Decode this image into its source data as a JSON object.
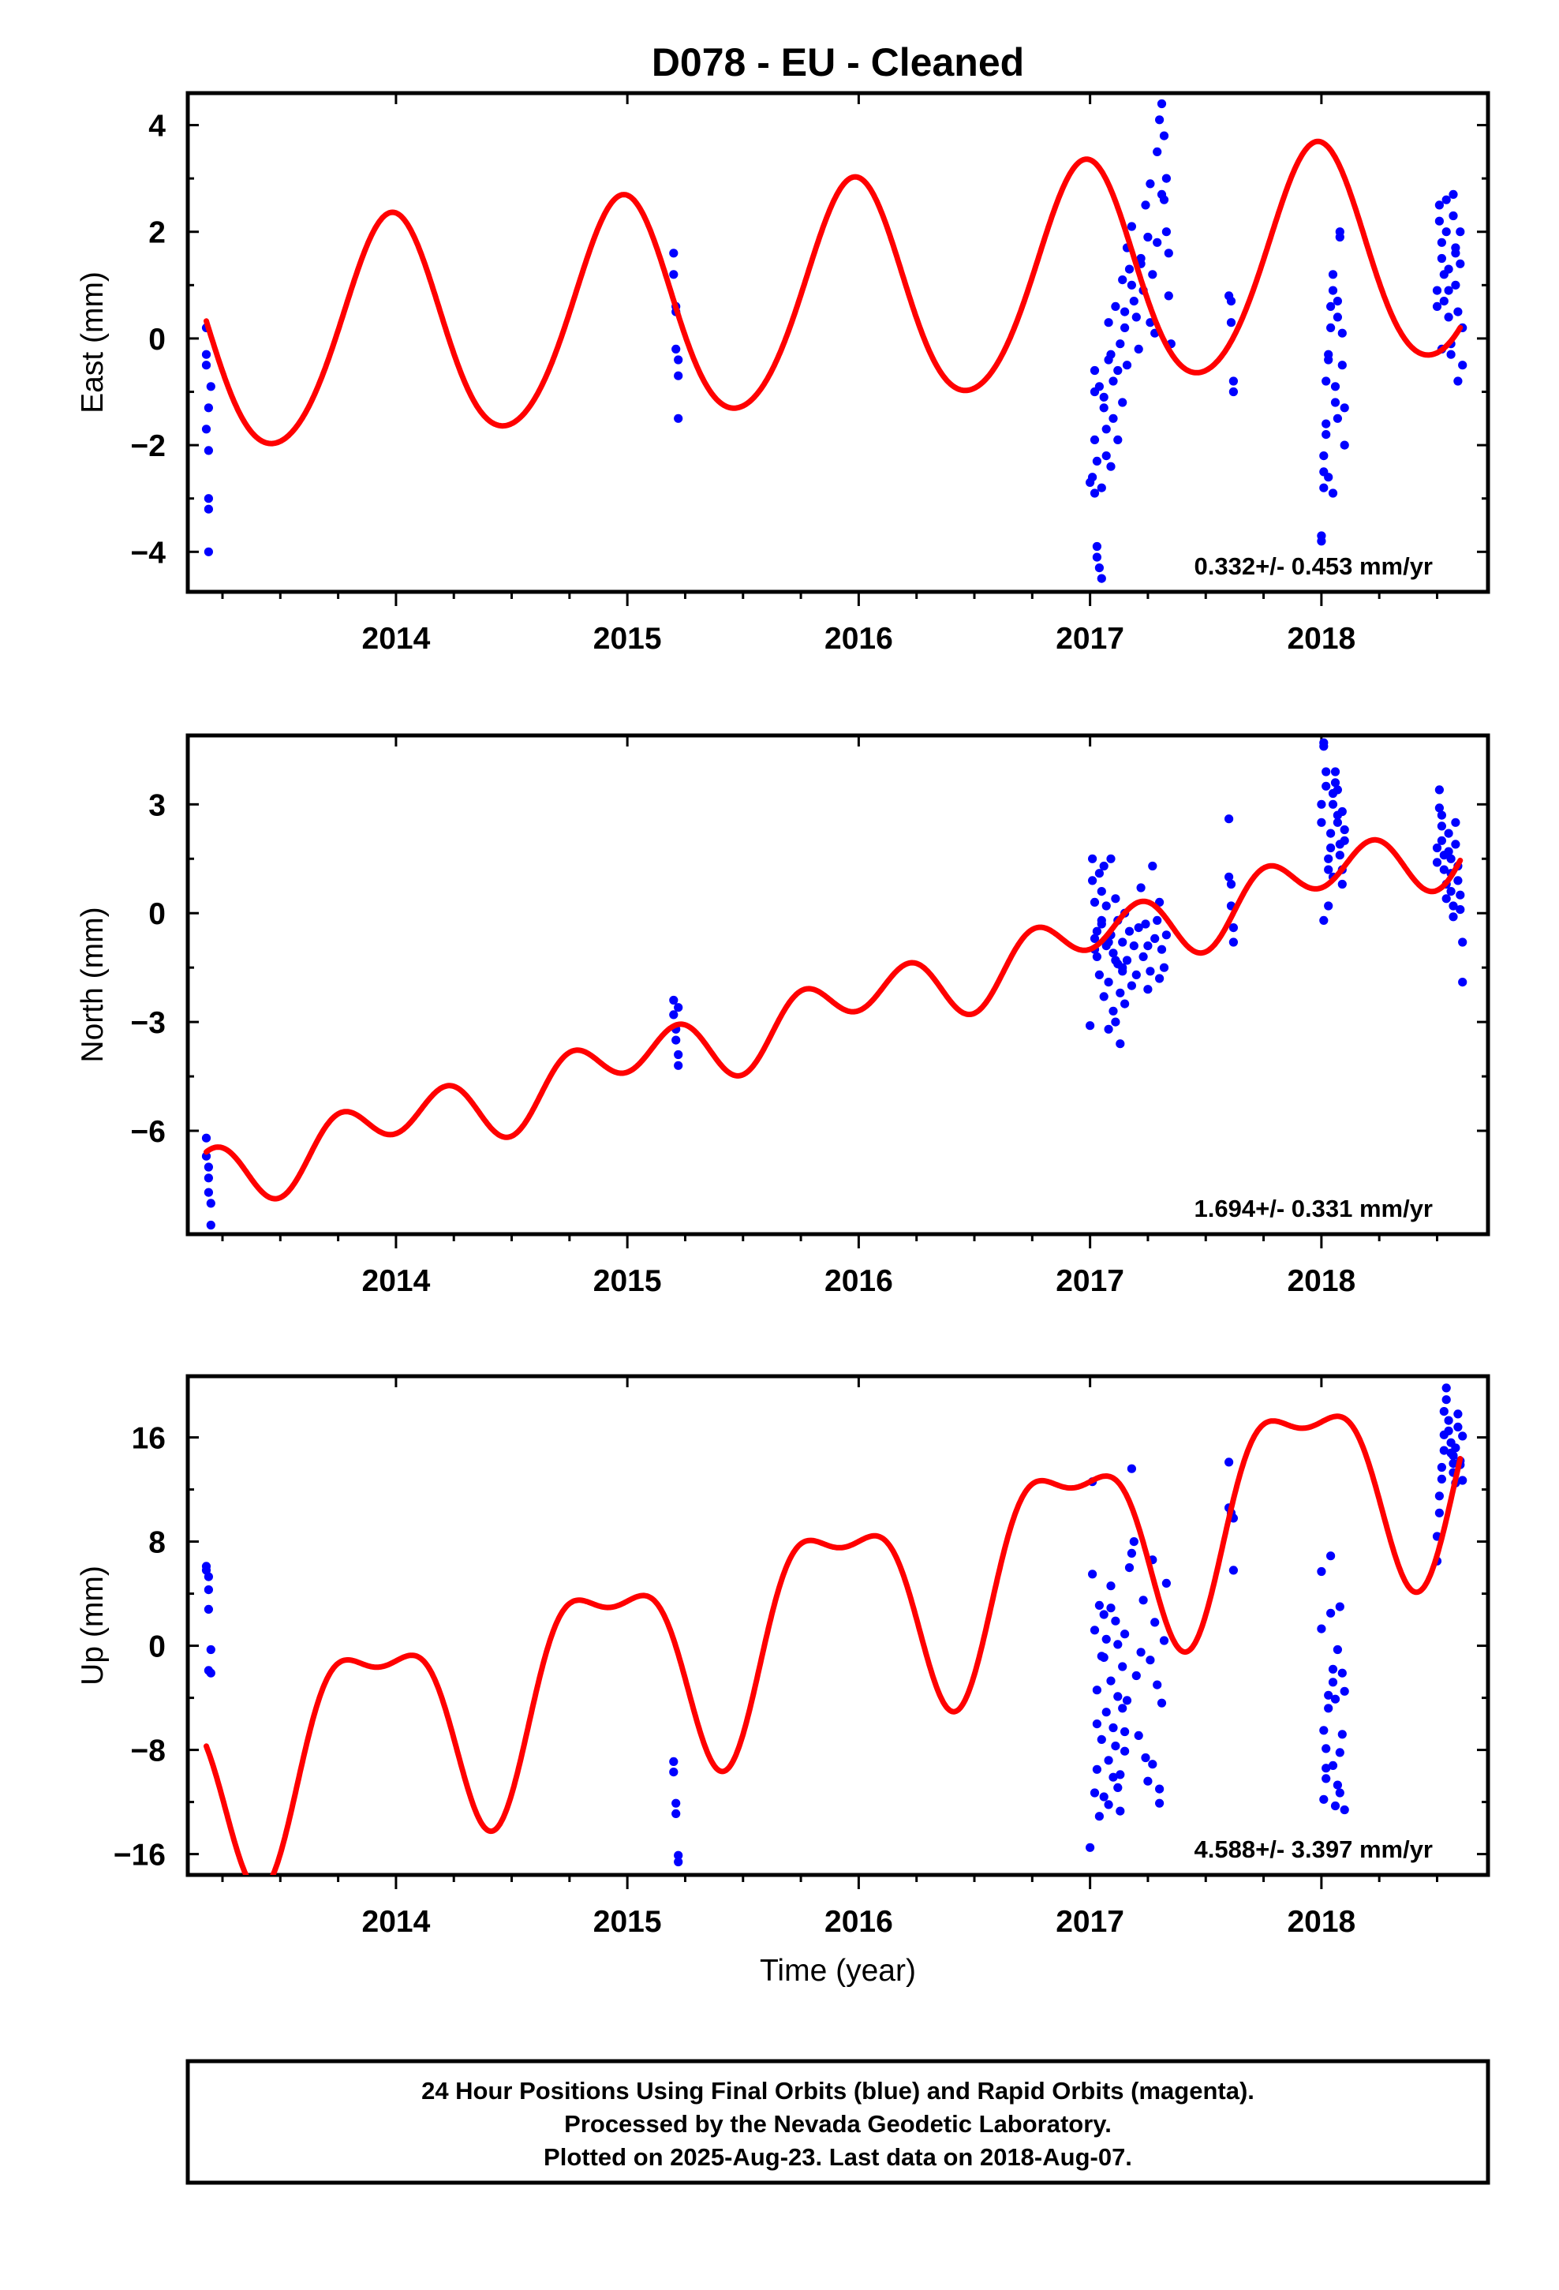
{
  "figure": {
    "title": "D078  - EU - Cleaned",
    "xlabel": "Time (year)",
    "footer": [
      "24 Hour Positions Using Final Orbits (blue) and Rapid Orbits (magenta).",
      "Processed by the Nevada Geodetic Laboratory.",
      "Plotted on 2025-Aug-23. Last data on 2018-Aug-07."
    ]
  },
  "chart_data": [
    {
      "type": "scatter",
      "ylabel": "East (mm)",
      "annotation": "0.332+/- 0.453 mm/yr",
      "xlim": [
        2013.1,
        2018.72
      ],
      "ylim": [
        -4.75,
        4.6
      ],
      "x_ticks": [
        2014,
        2015,
        2016,
        2017,
        2018
      ],
      "y_ticks": [
        4,
        2,
        0,
        -2,
        -4
      ],
      "y_tick_labels": [
        "4",
        "2",
        "0",
        "−2",
        "−4"
      ],
      "colors": {
        "data": "#0000ff",
        "model": "#ff0000"
      },
      "series": [
        {
          "marker": "dot",
          "x": [
            2013.18,
            2013.18,
            2013.19,
            2013.18,
            2013.19,
            2013.19,
            2013.19,
            2013.19,
            2013.2,
            2013.18,
            2015.2,
            2015.2,
            2015.21,
            2015.21,
            2015.21,
            2015.22,
            2015.22,
            2015.22,
            2017.0,
            2017.01,
            2017.02,
            2017.02,
            2017.03,
            2017.03,
            2017.04,
            2017.05,
            2017.05,
            2017.06,
            2017.07,
            2017.07,
            2017.08,
            2017.09,
            2017.1,
            2017.1,
            2017.11,
            2017.12,
            2017.13,
            2017.14,
            2017.14,
            2017.15,
            2017.16,
            2017.16,
            2017.17,
            2017.18,
            2017.19,
            2017.2,
            2017.21,
            2017.22,
            2017.23,
            2017.24,
            2017.25,
            2017.26,
            2017.27,
            2017.28,
            2017.29,
            2017.3,
            2017.31,
            2017.32,
            2017.32,
            2017.33,
            2017.33,
            2017.34,
            2017.34,
            2017.35,
            2017.02,
            2017.03,
            2017.04,
            2017.06,
            2017.08,
            2017.12,
            2017.15,
            2017.18,
            2017.22,
            2017.26,
            2017.29,
            2017.31,
            2017.02,
            2017.09,
            2017.6,
            2017.61,
            2017.61,
            2017.62,
            2017.62,
            2018.0,
            2018.0,
            2018.01,
            2018.01,
            2018.02,
            2018.02,
            2018.03,
            2018.03,
            2018.04,
            2018.04,
            2018.05,
            2018.05,
            2018.06,
            2018.06,
            2018.07,
            2018.07,
            2018.08,
            2018.08,
            2018.09,
            2018.09,
            2018.1,
            2018.1,
            2018.01,
            2018.03,
            2018.05,
            2018.07,
            2018.02,
            2018.5,
            2018.5,
            2018.51,
            2018.51,
            2018.52,
            2018.52,
            2018.53,
            2018.53,
            2018.54,
            2018.54,
            2018.55,
            2018.55,
            2018.56,
            2018.56,
            2018.57,
            2018.57,
            2018.58,
            2018.58,
            2018.59,
            2018.59,
            2018.6,
            2018.6,
            2018.61,
            2018.61,
            2018.52,
            2018.55,
            2018.58
          ],
          "y": [
            0.2,
            -0.5,
            -1.3,
            -1.7,
            -2.1,
            -3.0,
            -3.2,
            -4.0,
            -0.9,
            -0.3,
            1.6,
            1.2,
            0.6,
            0.5,
            -0.2,
            -0.4,
            -0.7,
            -1.5,
            -2.7,
            -2.6,
            -1.0,
            -0.6,
            -3.9,
            -4.1,
            -4.3,
            -4.5,
            -2.8,
            -1.3,
            -1.7,
            -2.2,
            0.3,
            -0.3,
            -1.5,
            -0.8,
            0.6,
            -1.9,
            -0.1,
            1.1,
            -1.2,
            0.2,
            1.7,
            -0.5,
            1.3,
            2.1,
            0.7,
            0.4,
            -0.2,
            1.5,
            0.9,
            2.5,
            1.9,
            2.9,
            1.2,
            0.1,
            3.5,
            4.1,
            4.4,
            3.8,
            2.6,
            3.0,
            2.0,
            1.6,
            0.8,
            -0.1,
            -1.9,
            -2.3,
            -0.9,
            -1.1,
            -0.4,
            -0.6,
            0.5,
            1.0,
            1.4,
            0.3,
            1.8,
            2.7,
            -2.9,
            -2.4,
            0.8,
            0.7,
            0.3,
            -0.8,
            -1.0,
            -3.7,
            -3.8,
            -2.2,
            -2.5,
            -1.8,
            -1.6,
            -0.4,
            -0.3,
            0.6,
            0.2,
            1.2,
            0.9,
            -0.9,
            -1.2,
            0.4,
            0.7,
            1.9,
            2.0,
            0.1,
            -0.5,
            -1.3,
            -2.0,
            -2.8,
            -2.6,
            -2.9,
            -1.5,
            -0.8,
            0.6,
            0.9,
            2.5,
            2.2,
            1.8,
            1.5,
            1.2,
            0.7,
            2.6,
            2.0,
            1.3,
            0.4,
            -0.3,
            -0.1,
            2.7,
            2.3,
            1.7,
            1.0,
            0.5,
            -0.8,
            2.0,
            1.4,
            0.2,
            -0.5,
            -0.2,
            0.9,
            1.6
          ]
        },
        {
          "marker": "line",
          "offset": -0.15,
          "slope": 0.332,
          "t0": 2013.2,
          "annual": [
            0.35,
            -2.05
          ],
          "semiannual": [
            -0.15,
            -0.1
          ]
        }
      ]
    },
    {
      "type": "scatter",
      "ylabel": "North (mm)",
      "annotation": "1.694+/- 0.331 mm/yr",
      "xlim": [
        2013.1,
        2018.72
      ],
      "ylim": [
        -8.85,
        4.9
      ],
      "x_ticks": [
        2014,
        2015,
        2016,
        2017,
        2018
      ],
      "y_ticks": [
        3,
        0,
        -3,
        -6
      ],
      "y_tick_labels": [
        "3",
        "0",
        "−3",
        "−6"
      ],
      "colors": {
        "data": "#0000ff",
        "model": "#ff0000"
      },
      "series": [
        {
          "marker": "dot",
          "x": [
            2013.18,
            2013.18,
            2013.19,
            2013.19,
            2013.19,
            2013.2,
            2013.2,
            2015.2,
            2015.2,
            2015.21,
            2015.21,
            2015.22,
            2015.22,
            2015.22,
            2017.0,
            2017.01,
            2017.01,
            2017.02,
            2017.02,
            2017.03,
            2017.03,
            2017.04,
            2017.04,
            2017.05,
            2017.05,
            2017.06,
            2017.06,
            2017.07,
            2017.07,
            2017.08,
            2017.08,
            2017.09,
            2017.09,
            2017.1,
            2017.1,
            2017.11,
            2017.11,
            2017.12,
            2017.12,
            2017.13,
            2017.13,
            2017.14,
            2017.14,
            2017.15,
            2017.15,
            2017.16,
            2017.17,
            2017.18,
            2017.19,
            2017.2,
            2017.21,
            2017.22,
            2017.23,
            2017.24,
            2017.25,
            2017.26,
            2017.27,
            2017.28,
            2017.29,
            2017.3,
            2017.31,
            2017.32,
            2017.33,
            2017.02,
            2017.05,
            2017.08,
            2017.11,
            2017.14,
            2017.25,
            2017.3,
            2017.6,
            2017.6,
            2017.61,
            2017.61,
            2017.62,
            2017.62,
            2018.0,
            2018.0,
            2018.01,
            2018.01,
            2018.02,
            2018.02,
            2018.03,
            2018.03,
            2018.04,
            2018.04,
            2018.05,
            2018.05,
            2018.06,
            2018.06,
            2018.07,
            2018.07,
            2018.08,
            2018.08,
            2018.09,
            2018.09,
            2018.1,
            2018.1,
            2018.01,
            2018.03,
            2018.05,
            2018.07,
            2018.09,
            2018.5,
            2018.5,
            2018.51,
            2018.51,
            2018.52,
            2018.52,
            2018.53,
            2018.53,
            2018.54,
            2018.54,
            2018.55,
            2018.55,
            2018.56,
            2018.56,
            2018.57,
            2018.57,
            2018.58,
            2018.58,
            2018.59,
            2018.59,
            2018.6,
            2018.6,
            2018.61,
            2018.61,
            2018.52,
            2018.56
          ],
          "y": [
            -6.2,
            -6.7,
            -7.0,
            -7.3,
            -7.7,
            -8.0,
            -8.6,
            -2.4,
            -2.8,
            -3.2,
            -3.5,
            -3.9,
            -4.2,
            -2.6,
            -3.1,
            1.5,
            0.9,
            -0.7,
            0.3,
            -1.2,
            -0.5,
            1.1,
            -1.7,
            -0.3,
            0.6,
            -2.3,
            1.3,
            -0.9,
            0.2,
            -1.9,
            -3.2,
            -0.6,
            1.5,
            -2.7,
            -1.1,
            0.4,
            -3.0,
            -1.4,
            -0.2,
            -2.2,
            -3.6,
            -0.8,
            -1.6,
            -2.5,
            0.0,
            -1.3,
            -0.5,
            -2.0,
            -0.9,
            -1.7,
            -0.4,
            0.7,
            -1.2,
            -0.3,
            -2.1,
            -1.6,
            1.3,
            -0.7,
            -0.2,
            0.3,
            -1.0,
            -1.5,
            -0.6,
            -1.0,
            -0.2,
            -0.8,
            -1.3,
            -1.5,
            -0.9,
            -1.8,
            2.6,
            1.0,
            0.8,
            0.2,
            -0.4,
            -0.8,
            3.0,
            2.5,
            4.7,
            4.6,
            3.9,
            3.5,
            1.5,
            1.2,
            2.2,
            1.8,
            3.3,
            3.0,
            3.9,
            3.6,
            2.7,
            2.5,
            1.9,
            1.6,
            1.2,
            0.8,
            2.3,
            2.0,
            -0.2,
            0.2,
            1.0,
            3.4,
            2.8,
            1.8,
            1.4,
            3.4,
            2.9,
            2.4,
            2.0,
            1.6,
            1.2,
            0.8,
            0.4,
            2.2,
            1.7,
            1.1,
            0.6,
            0.2,
            -0.1,
            2.5,
            1.9,
            1.3,
            0.9,
            0.5,
            0.1,
            -0.8,
            -1.9,
            2.7,
            1.5
          ]
        },
        {
          "marker": "line",
          "offset": -7.2,
          "slope": 1.694,
          "t0": 2013.2,
          "annual": [
            0.1,
            -0.45
          ],
          "semiannual": [
            0.6,
            0.35
          ]
        }
      ]
    },
    {
      "type": "scatter",
      "ylabel": "Up (mm)",
      "annotation": "4.588+/- 3.397 mm/yr",
      "xlim": [
        2013.1,
        2018.72
      ],
      "ylim": [
        -17.6,
        20.7
      ],
      "x_ticks": [
        2014,
        2015,
        2016,
        2017,
        2018
      ],
      "y_ticks": [
        16,
        8,
        0,
        -8,
        -16
      ],
      "y_tick_labels": [
        "16",
        "8",
        "0",
        "−8",
        "−16"
      ],
      "colors": {
        "data": "#0000ff",
        "model": "#ff0000"
      },
      "series": [
        {
          "marker": "dot",
          "x": [
            2013.18,
            2013.18,
            2013.19,
            2013.19,
            2013.19,
            2013.2,
            2013.2,
            2013.19,
            2015.2,
            2015.2,
            2015.21,
            2015.21,
            2015.22,
            2015.22,
            2017.0,
            2017.01,
            2017.01,
            2017.02,
            2017.02,
            2017.03,
            2017.03,
            2017.04,
            2017.04,
            2017.05,
            2017.05,
            2017.06,
            2017.06,
            2017.07,
            2017.07,
            2017.08,
            2017.08,
            2017.09,
            2017.09,
            2017.1,
            2017.1,
            2017.11,
            2017.11,
            2017.12,
            2017.12,
            2017.13,
            2017.13,
            2017.14,
            2017.14,
            2017.15,
            2017.15,
            2017.16,
            2017.17,
            2017.18,
            2017.19,
            2017.2,
            2017.21,
            2017.22,
            2017.23,
            2017.24,
            2017.25,
            2017.26,
            2017.27,
            2017.28,
            2017.29,
            2017.3,
            2017.31,
            2017.32,
            2017.33,
            2017.03,
            2017.06,
            2017.09,
            2017.12,
            2017.15,
            2017.18,
            2017.27,
            2017.3,
            2017.6,
            2017.6,
            2017.61,
            2017.61,
            2017.62,
            2017.62,
            2018.0,
            2018.0,
            2018.01,
            2018.01,
            2018.02,
            2018.02,
            2018.03,
            2018.03,
            2018.04,
            2018.04,
            2018.05,
            2018.05,
            2018.06,
            2018.06,
            2018.07,
            2018.07,
            2018.08,
            2018.08,
            2018.09,
            2018.09,
            2018.1,
            2018.1,
            2018.02,
            2018.05,
            2018.08,
            2018.5,
            2018.5,
            2018.51,
            2018.51,
            2018.52,
            2018.52,
            2018.53,
            2018.53,
            2018.54,
            2018.54,
            2018.55,
            2018.55,
            2018.56,
            2018.56,
            2018.57,
            2018.57,
            2018.58,
            2018.58,
            2018.59,
            2018.59,
            2018.6,
            2018.6,
            2018.61,
            2018.61,
            2018.53,
            2018.57
          ],
          "y": [
            6.1,
            5.8,
            5.3,
            4.3,
            2.8,
            -0.3,
            -2.1,
            -1.9,
            -8.9,
            -9.7,
            -12.1,
            -12.9,
            -16.1,
            -16.6,
            -15.5,
            12.6,
            5.5,
            -11.3,
            1.2,
            -9.5,
            -3.4,
            3.1,
            -13.1,
            -7.2,
            -0.8,
            -11.6,
            2.4,
            -5.1,
            0.5,
            -8.8,
            -12.2,
            -2.7,
            4.6,
            -10.1,
            -6.3,
            1.9,
            -7.7,
            -3.9,
            0.1,
            -9.9,
            -12.7,
            -1.6,
            -4.8,
            -8.1,
            0.9,
            -4.2,
            6.0,
            13.6,
            8.0,
            -2.3,
            -6.9,
            -0.5,
            3.5,
            -8.6,
            -10.4,
            -1.1,
            6.6,
            1.8,
            -3.0,
            -12.1,
            -4.4,
            0.4,
            4.8,
            -6.0,
            -0.9,
            2.9,
            -10.9,
            -6.6,
            7.1,
            -9.1,
            -11.0,
            14.1,
            10.6,
            10.2,
            10.0,
            9.8,
            5.8,
            5.7,
            1.3,
            -6.5,
            -11.8,
            -10.2,
            -9.4,
            -4.8,
            -3.8,
            6.9,
            2.5,
            -1.8,
            -9.2,
            -12.3,
            -4.1,
            -0.3,
            -10.7,
            -8.2,
            3.0,
            -2.1,
            -6.8,
            -12.6,
            -3.5,
            -7.9,
            -2.8,
            -11.3,
            6.5,
            8.4,
            10.2,
            11.5,
            12.8,
            13.7,
            15.0,
            16.2,
            19.8,
            18.9,
            17.3,
            16.5,
            15.6,
            14.8,
            14.0,
            13.3,
            12.5,
            15.2,
            16.8,
            17.8,
            14.2,
            13.9,
            12.7,
            16.1,
            18.0,
            14.6
          ]
        },
        {
          "marker": "line",
          "offset": -9.5,
          "slope": 4.588,
          "t0": 2013.2,
          "annual": [
            -1.9,
            -7.2
          ],
          "semiannual": [
            2.7,
            -1.0
          ]
        }
      ]
    }
  ]
}
